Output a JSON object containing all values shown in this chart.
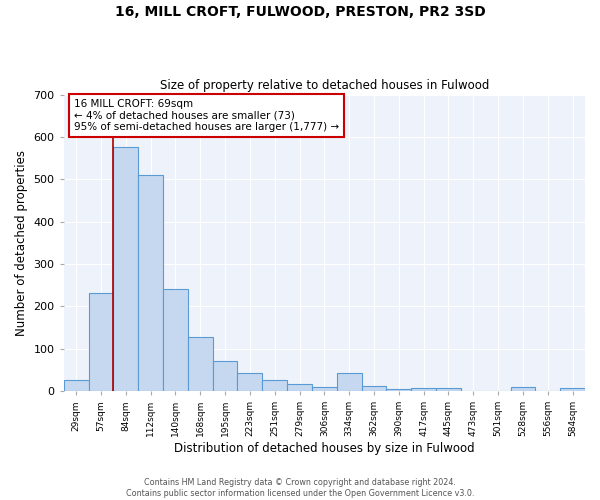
{
  "title_line1": "16, MILL CROFT, FULWOOD, PRESTON, PR2 3SD",
  "title_line2": "Size of property relative to detached houses in Fulwood",
  "xlabel": "Distribution of detached houses by size in Fulwood",
  "ylabel": "Number of detached properties",
  "categories": [
    "29sqm",
    "57sqm",
    "84sqm",
    "112sqm",
    "140sqm",
    "168sqm",
    "195sqm",
    "223sqm",
    "251sqm",
    "279sqm",
    "306sqm",
    "334sqm",
    "362sqm",
    "390sqm",
    "417sqm",
    "445sqm",
    "473sqm",
    "501sqm",
    "528sqm",
    "556sqm",
    "584sqm"
  ],
  "values": [
    25,
    232,
    575,
    510,
    240,
    127,
    72,
    42,
    25,
    16,
    10,
    42,
    12,
    5,
    7,
    7,
    0,
    0,
    10,
    0,
    7
  ],
  "bar_color": "#c5d8f0",
  "bar_edge_color": "#5b9bd5",
  "red_line_x": 1.5,
  "annotation_text": "16 MILL CROFT: 69sqm\n← 4% of detached houses are smaller (73)\n95% of semi-detached houses are larger (1,777) →",
  "annotation_box_color": "white",
  "annotation_box_edge": "#cc0000",
  "footnote_line1": "Contains HM Land Registry data © Crown copyright and database right 2024.",
  "footnote_line2": "Contains public sector information licensed under the Open Government Licence v3.0.",
  "background_color": "#eef2fa",
  "ylim": [
    0,
    700
  ],
  "yticks": [
    0,
    100,
    200,
    300,
    400,
    500,
    600,
    700
  ],
  "figsize": [
    6.0,
    5.0
  ],
  "dpi": 100
}
